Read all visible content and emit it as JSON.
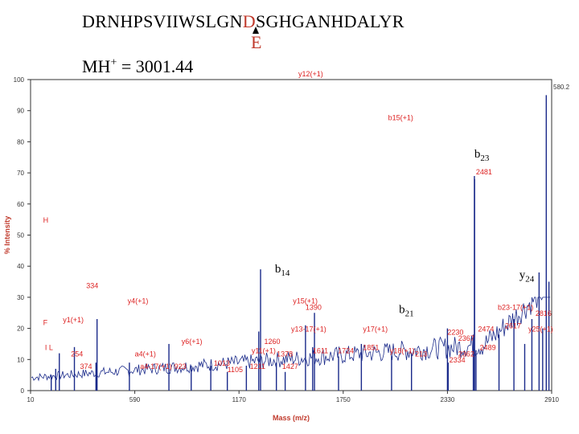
{
  "header": {
    "sequence_pre": "DRNHPSVIIWSLGN",
    "sequence_mut": "D",
    "sequence_post": "SGHGANHDALYR",
    "mutation_sub": "E",
    "mass_prefix": "MH",
    "mass_sup": "+",
    "mass_value": " = 3001.44"
  },
  "chart_data": {
    "type": "line",
    "title": "",
    "xlabel": "Mass (m/z)",
    "ylabel": "% Intensity",
    "xlim": [
      10,
      2910
    ],
    "ylim": [
      0,
      100
    ],
    "x_ticks": [
      "10",
      "590",
      "1170",
      "1750",
      "2330",
      "2910"
    ],
    "y_ticks": [
      "0",
      "10",
      "20",
      "30",
      "40",
      "50",
      "60",
      "70",
      "80",
      "90",
      "100"
    ],
    "max_intensity_label": "580.2",
    "peaks": [
      {
        "x": 125,
        "y": 5
      },
      {
        "x": 150,
        "y": 7
      },
      {
        "x": 170,
        "y": 12
      },
      {
        "x": 254,
        "y": 14
      },
      {
        "x": 374,
        "y": 9
      },
      {
        "x": 380,
        "y": 23
      },
      {
        "x": 560,
        "y": 9
      },
      {
        "x": 780,
        "y": 15
      },
      {
        "x": 904,
        "y": 8
      },
      {
        "x": 1013,
        "y": 8
      },
      {
        "x": 1105,
        "y": 6
      },
      {
        "x": 1211,
        "y": 8
      },
      {
        "x": 1280,
        "y": 19
      },
      {
        "x": 1290,
        "y": 39
      },
      {
        "x": 1378,
        "y": 9
      },
      {
        "x": 1427,
        "y": 6
      },
      {
        "x": 1540,
        "y": 21
      },
      {
        "x": 1580,
        "y": 14
      },
      {
        "x": 1590,
        "y": 25
      },
      {
        "x": 1724,
        "y": 11
      },
      {
        "x": 1851,
        "y": 15
      },
      {
        "x": 2019,
        "y": 11
      },
      {
        "x": 2130,
        "y": 12
      },
      {
        "x": 2330,
        "y": 20
      },
      {
        "x": 2334,
        "y": 9
      },
      {
        "x": 2481,
        "y": 68
      },
      {
        "x": 2474,
        "y": 18
      },
      {
        "x": 2489,
        "y": 13
      },
      {
        "x": 2617,
        "y": 18
      },
      {
        "x": 2700,
        "y": 23
      },
      {
        "x": 2760,
        "y": 15
      },
      {
        "x": 2800,
        "y": 23
      },
      {
        "x": 2840,
        "y": 38
      },
      {
        "x": 2860,
        "y": 20
      },
      {
        "x": 2880,
        "y": 95
      },
      {
        "x": 2895,
        "y": 35
      }
    ],
    "ion_annotations": [
      {
        "text": "y12(+1)",
        "x": 1500,
        "y": 101
      },
      {
        "text": "b15(+1)",
        "x": 2000,
        "y": 87
      },
      {
        "text": "H",
        "x": 80,
        "y": 54
      },
      {
        "text": "334",
        "x": 320,
        "y": 33
      },
      {
        "text": "y4(+1)",
        "x": 550,
        "y": 28
      },
      {
        "text": "y15(+1)",
        "x": 1470,
        "y": 28
      },
      {
        "text": "1390",
        "x": 1540,
        "y": 26
      },
      {
        "text": "b23-17(+1)",
        "x": 2610,
        "y": 26
      },
      {
        "text": "F",
        "x": 80,
        "y": 21
      },
      {
        "text": "y1(+1)",
        "x": 190,
        "y": 22
      },
      {
        "text": "y13-17(+1)",
        "x": 1460,
        "y": 19
      },
      {
        "text": "y17(+1)",
        "x": 1860,
        "y": 19
      },
      {
        "text": "2230",
        "x": 2330,
        "y": 18
      },
      {
        "text": "2474",
        "x": 2500,
        "y": 19
      },
      {
        "text": "2617",
        "x": 2650,
        "y": 20
      },
      {
        "text": "y6(+1)",
        "x": 850,
        "y": 15
      },
      {
        "text": "1260",
        "x": 1310,
        "y": 15
      },
      {
        "text": "2367",
        "x": 2390,
        "y": 16
      },
      {
        "text": "I L",
        "x": 90,
        "y": 13
      },
      {
        "text": "254",
        "x": 235,
        "y": 11
      },
      {
        "text": "a4(+1)",
        "x": 590,
        "y": 11
      },
      {
        "text": "y11(+1)",
        "x": 1240,
        "y": 12
      },
      {
        "text": "1378",
        "x": 1380,
        "y": 11
      },
      {
        "text": "1611",
        "x": 1580,
        "y": 12
      },
      {
        "text": "1724",
        "x": 1720,
        "y": 12
      },
      {
        "text": "1851",
        "x": 1860,
        "y": 13
      },
      {
        "text": "y18(+1)",
        "x": 2010,
        "y": 12
      },
      {
        "text": "213",
        "x": 2150,
        "y": 11
      },
      {
        "text": "2489",
        "x": 2510,
        "y": 13
      },
      {
        "text": "2334",
        "x": 2340,
        "y": 9
      },
      {
        "text": "2362",
        "x": 2390,
        "y": 11
      },
      {
        "text": "374",
        "x": 285,
        "y": 7
      },
      {
        "text": "a4-17(+1)",
        "x": 620,
        "y": 7
      },
      {
        "text": "923",
        "x": 810,
        "y": 7
      },
      {
        "text": "1013",
        "x": 1030,
        "y": 8
      },
      {
        "text": "1105",
        "x": 1105,
        "y": 6
      },
      {
        "text": "1211",
        "x": 1230,
        "y": 7
      },
      {
        "text": "1427",
        "x": 1410,
        "y": 7
      },
      {
        "text": "y25(+1)",
        "x": 2780,
        "y": 19
      },
      {
        "text": "2816",
        "x": 2820,
        "y": 24
      }
    ],
    "fragment_labels": [
      {
        "text": "b",
        "sub": "23",
        "x": 2480,
        "y": 75
      },
      {
        "text": "b",
        "sub": "14",
        "x": 1370,
        "y": 38
      },
      {
        "text": "y",
        "sub": "24",
        "x": 2730,
        "y": 36
      },
      {
        "text": "b",
        "sub": "21",
        "x": 2060,
        "y": 25
      }
    ],
    "top_peak": {
      "x": 2480,
      "y": 69,
      "label": "2481"
    }
  }
}
